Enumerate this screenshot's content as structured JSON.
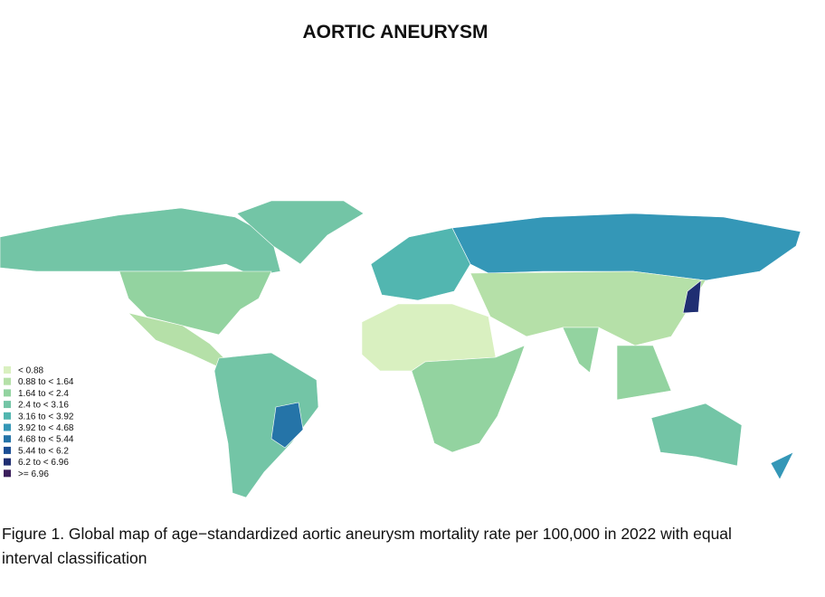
{
  "header": {
    "title": "AORTIC ANEURYSM"
  },
  "legend": {
    "items": [
      {
        "label": "< 0.88",
        "color": "#d9f0c0"
      },
      {
        "label": "0.88 to < 1.64",
        "color": "#b5e0a8"
      },
      {
        "label": "1.64 to < 2.4",
        "color": "#93d3a0"
      },
      {
        "label": "2.4 to < 3.16",
        "color": "#73c5a6"
      },
      {
        "label": "3.16 to < 3.92",
        "color": "#52b6b0"
      },
      {
        "label": "3.92 to < 4.68",
        "color": "#3497b7"
      },
      {
        "label": "4.68 to < 5.44",
        "color": "#2574a8"
      },
      {
        "label": "5.44 to < 6.2",
        "color": "#1c4e94"
      },
      {
        "label": "6.2 to < 6.96",
        "color": "#1f2e72"
      },
      {
        "label": ">= 6.96",
        "color": "#3b1f5c"
      }
    ]
  },
  "caption": "Figure 1. Global map of age−standardized aortic aneurysm mortality rate per 100,000 in 2022 with equal interval classification"
}
